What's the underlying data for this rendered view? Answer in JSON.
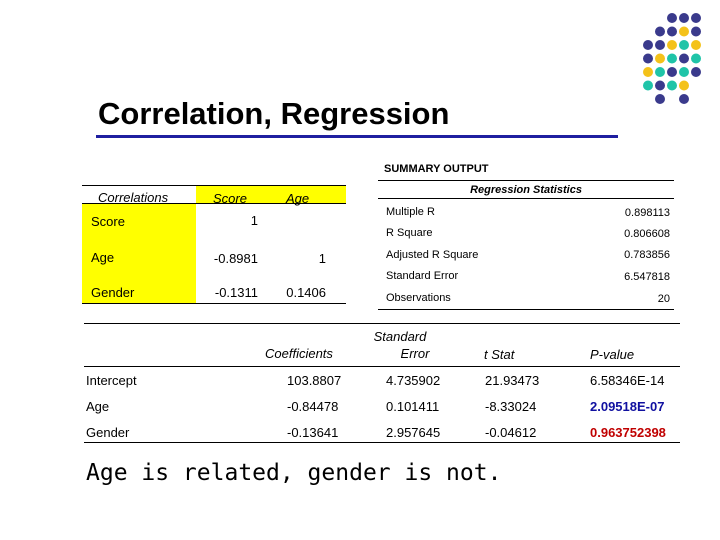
{
  "slide_title": "Correlation, Regression",
  "summary": {
    "heading": "SUMMARY OUTPUT",
    "regression_stats_heading": "Regression Statistics",
    "stats": [
      {
        "label": "Multiple R",
        "value": "0.898113"
      },
      {
        "label": "R Square",
        "value": "0.806608"
      },
      {
        "label": "Adjusted R Square",
        "value": "0.783856"
      },
      {
        "label": "Standard Error",
        "value": "6.547818"
      },
      {
        "label": "Observations",
        "value": "20"
      }
    ]
  },
  "correlations": {
    "corner": "Correlations",
    "col_headers": [
      "Score",
      "Age"
    ],
    "rows": [
      {
        "label": "Score",
        "values": [
          "1",
          ""
        ]
      },
      {
        "label": "Age",
        "values": [
          "-0.8981",
          "1"
        ]
      },
      {
        "label": "Gender",
        "values": [
          "-0.1311",
          "0.1406"
        ]
      }
    ]
  },
  "coefficients": {
    "headers": {
      "coef": "Coefficients",
      "se_line1": "Standard",
      "se_line2": "Error",
      "t": "t Stat",
      "p": "P-value"
    },
    "rows": [
      {
        "label": "Intercept",
        "coef": "103.8807",
        "se": "4.735902",
        "t": "21.93473",
        "p": "6.58346E-14"
      },
      {
        "label": "Age",
        "coef": "-0.84478",
        "se": "0.101411",
        "t": "-8.33024",
        "p": "2.09518E-07"
      },
      {
        "label": "Gender",
        "coef": "-0.13641",
        "se": "2.957645",
        "t": "-0.04612",
        "p": "0.963752398"
      }
    ]
  },
  "caption": "Age is related, gender is not.",
  "colors": {
    "dot_navy": "#3a3a8c",
    "dot_yellow": "#f4c21a",
    "dot_teal": "#1fc4a8",
    "highlight": "#ffff00",
    "rule": "#1f1fa0",
    "p_blue": "#1010a0",
    "p_red": "#c00000"
  }
}
